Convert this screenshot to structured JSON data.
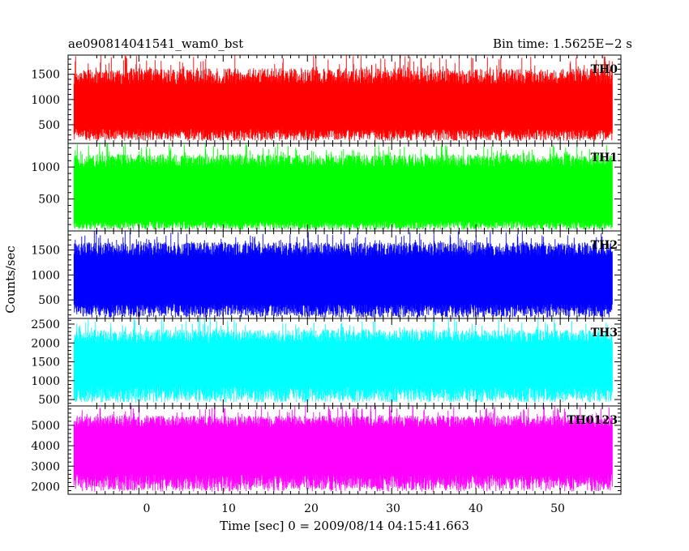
{
  "header": {
    "title": "ae090814041541_wam0_bst",
    "bin_time": "Bin time: 1.5625E−2 s"
  },
  "axes": {
    "xlabel": "Time [sec] 0 = 2009/08/14 04:15:41.663",
    "ylabel": "Counts/sec",
    "x_ticks": [
      "0",
      "10",
      "20",
      "30",
      "40",
      "50"
    ]
  },
  "chart_data": [
    {
      "type": "line",
      "name": "TH0",
      "color": "#ff0000",
      "xlim": [
        -8.4,
        57.2
      ],
      "ylim": [
        130,
        1880
      ],
      "yticks": [
        500,
        1000,
        1500
      ],
      "x_range": [
        -7.7,
        56.2
      ],
      "mean": 800,
      "envelope": {
        "low": [
          180,
          420
        ],
        "high": [
          1300,
          1880
        ]
      },
      "spikes": [
        {
          "x": 31.0,
          "y": 1880
        }
      ]
    },
    {
      "type": "line",
      "name": "TH1",
      "color": "#00ff00",
      "xlim": [
        -8.4,
        57.2
      ],
      "ylim": [
        0,
        1370
      ],
      "yticks": [
        500,
        1000
      ],
      "x_range": [
        -7.7,
        56.2
      ],
      "mean": 600,
      "envelope": {
        "low": [
          20,
          150
        ],
        "high": [
          1000,
          1370
        ]
      },
      "spikes": []
    },
    {
      "type": "line",
      "name": "TH2",
      "color": "#0000ff",
      "xlim": [
        -8.4,
        57.2
      ],
      "ylim": [
        130,
        1880
      ],
      "yticks": [
        500,
        1000,
        1500
      ],
      "x_range": [
        -7.7,
        56.2
      ],
      "mean": 850,
      "envelope": {
        "low": [
          150,
          420
        ],
        "high": [
          1380,
          1880
        ]
      },
      "spikes": []
    },
    {
      "type": "line",
      "name": "TH3",
      "color": "#00ffff",
      "xlim": [
        -8.4,
        57.2
      ],
      "ylim": [
        330,
        2650
      ],
      "yticks": [
        500,
        1000,
        1500,
        2000,
        2500
      ],
      "x_range": [
        -7.7,
        56.2
      ],
      "mean": 1300,
      "envelope": {
        "low": [
          420,
          860
        ],
        "high": [
          2000,
          2650
        ]
      },
      "spikes": []
    },
    {
      "type": "line",
      "name": "TH0123",
      "color": "#ff00ff",
      "xlim": [
        -8.4,
        57.2
      ],
      "ylim": [
        1620,
        5950
      ],
      "yticks": [
        2000,
        3000,
        4000,
        5000
      ],
      "x_range": [
        -7.7,
        56.2
      ],
      "mean": 3600,
      "envelope": {
        "low": [
          1750,
          2600
        ],
        "high": [
          4900,
          5950
        ]
      },
      "spikes": [
        {
          "x": 9.0,
          "y": 5950
        },
        {
          "x": 32.5,
          "y": 5950
        }
      ]
    }
  ]
}
